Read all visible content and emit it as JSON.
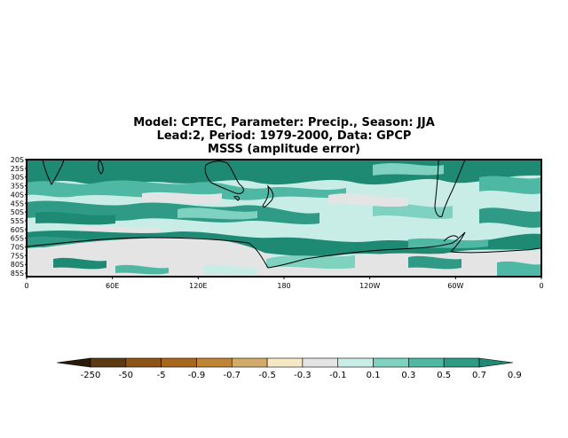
{
  "title": {
    "line1": "Model: CPTEC, Parameter: Precip., Season: JJA",
    "line2": "Lead:2, Period: 1979-2000, Data: GPCP",
    "line3": "MSSS (amplitude error)"
  },
  "map": {
    "lat_labels": [
      "20S",
      "25S",
      "30S",
      "35S",
      "40S",
      "45S",
      "50S",
      "55S",
      "60S",
      "65S",
      "70S",
      "75S",
      "80S",
      "85S"
    ],
    "lon_labels": [
      "0",
      "60E",
      "120E",
      "180",
      "120W",
      "60W",
      "0"
    ],
    "lat_range": [
      -87,
      -20
    ],
    "lon_range": [
      0,
      360
    ]
  },
  "legend": {
    "colors": [
      "#2a1a08",
      "#5c3a12",
      "#8c5518",
      "#a8671e",
      "#c08436",
      "#d2ab6a",
      "#f4e8c6",
      "#e4e4e4",
      "#c8ede6",
      "#7fd1c0",
      "#4fb8a4",
      "#2f9a86",
      "#1e8a74"
    ],
    "labels": [
      "-250",
      "-50",
      "-5",
      "-0.9",
      "-0.7",
      "-0.5",
      "-0.3",
      "-0.1",
      "0.1",
      "0.3",
      "0.5",
      "0.7",
      "0.9"
    ]
  }
}
